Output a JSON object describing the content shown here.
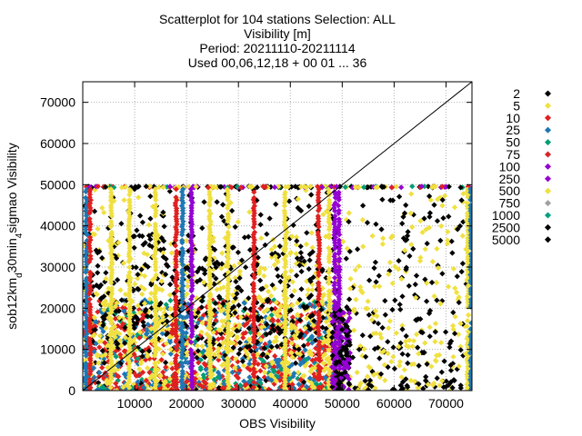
{
  "chart_data": {
    "type": "scatter",
    "title_lines": [
      "Scatterplot for  104 stations Selection: ALL",
      "Visibility [m]",
      "Period: 20211110-20211114",
      "Used 00,06,12,18 + 00 01 ... 36"
    ],
    "xlabel": "OBS Visibility",
    "ylabel": "sob12km_d30min_4sigmao Visibility",
    "xlim": [
      0,
      75000
    ],
    "ylim": [
      0,
      75000
    ],
    "xticks": [
      10000,
      20000,
      30000,
      40000,
      50000,
      60000,
      70000
    ],
    "xtick_labels": [
      "10000",
      "20000",
      "30000",
      "40000",
      "50000",
      "60000",
      "70000"
    ],
    "yticks": [
      0,
      10000,
      20000,
      30000,
      40000,
      50000,
      60000,
      70000
    ],
    "ytick_labels": [
      "0",
      "10000",
      "20000",
      "30000",
      "40000",
      "50000",
      "60000",
      "70000"
    ],
    "grid": true,
    "diagonal": true,
    "legend_position": "right",
    "series": [
      {
        "name": "2",
        "color": "#000000"
      },
      {
        "name": "5",
        "color": "#f0e040"
      },
      {
        "name": "10",
        "color": "#e02020"
      },
      {
        "name": "25",
        "color": "#1f77b4"
      },
      {
        "name": "50",
        "color": "#009e73"
      },
      {
        "name": "75",
        "color": "#d62728"
      },
      {
        "name": "100",
        "color": "#9400d3"
      },
      {
        "name": "250",
        "color": "#9400d3"
      },
      {
        "name": "500",
        "color": "#f0e040"
      },
      {
        "name": "750",
        "color": "#a0a0a0"
      },
      {
        "name": "1000",
        "color": "#00a080"
      },
      {
        "name": "2500",
        "color": "#000000"
      },
      {
        "name": "5000",
        "color": "#000000"
      }
    ]
  }
}
